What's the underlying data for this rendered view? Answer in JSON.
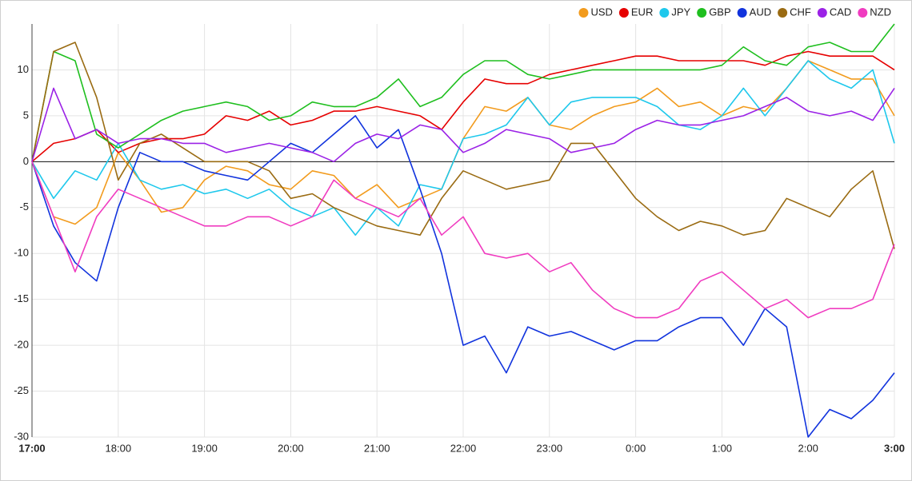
{
  "chart_data": {
    "type": "line",
    "categories": [
      "17:00",
      null,
      null,
      null,
      "18:00",
      null,
      null,
      null,
      "19:00",
      null,
      null,
      null,
      "20:00",
      null,
      null,
      null,
      "21:00",
      null,
      null,
      null,
      "22:00",
      null,
      null,
      null,
      "23:00",
      null,
      null,
      null,
      "0:00",
      null,
      null,
      null,
      "1:00",
      null,
      null,
      null,
      "2:00",
      null,
      null,
      null,
      "3:00"
    ],
    "ylim": [
      -30,
      15
    ],
    "yticks": [
      -30,
      -25,
      -20,
      -15,
      -10,
      -5,
      0,
      5,
      10
    ],
    "grid": true,
    "legend": "top-right",
    "series": [
      {
        "name": "USD",
        "color": "#f29b1d",
        "values": [
          0,
          -6,
          -6.8,
          -5,
          1,
          -2,
          -5.5,
          -5,
          -2,
          -0.5,
          -1,
          -2.5,
          -3,
          -1,
          -1.5,
          -4,
          -2.5,
          -5,
          -4,
          -3,
          2.5,
          6,
          5.5,
          7,
          4,
          3.5,
          5,
          6,
          6.5,
          8,
          6,
          6.5,
          5,
          6,
          5.5,
          8,
          11,
          10,
          9,
          9,
          5
        ]
      },
      {
        "name": "EUR",
        "color": "#e60000",
        "values": [
          0,
          2,
          2.5,
          3.5,
          1,
          2,
          2.5,
          2.5,
          3,
          5,
          4.5,
          5.5,
          4,
          4.5,
          5.5,
          5.5,
          6,
          5.5,
          5,
          3.5,
          6.5,
          9,
          8.5,
          8.5,
          9.5,
          10,
          10.5,
          11,
          11.5,
          11.5,
          11,
          11,
          11,
          11,
          10.5,
          11.5,
          12,
          11.5,
          11.5,
          11.5,
          10
        ]
      },
      {
        "name": "JPY",
        "color": "#1ec8ec",
        "values": [
          0,
          -4,
          -1,
          -2,
          2,
          -2,
          -3,
          -2.5,
          -3.5,
          -3,
          -4,
          -3,
          -5,
          -6,
          -5,
          -8,
          -5,
          -7,
          -2.5,
          -3,
          2.5,
          3,
          4,
          7,
          4,
          6.5,
          7,
          7,
          7,
          6,
          4,
          3.5,
          5,
          8,
          5,
          8,
          11,
          9,
          8,
          10,
          2
        ]
      },
      {
        "name": "GBP",
        "color": "#1fbf1f",
        "values": [
          0,
          12,
          11,
          3,
          1.5,
          3,
          4.5,
          5.5,
          6,
          6.5,
          6,
          4.5,
          5,
          6.5,
          6,
          6,
          7,
          9,
          6,
          7,
          9.5,
          11,
          11,
          9.5,
          9,
          9.5,
          10,
          10,
          10,
          10,
          10,
          10,
          10.5,
          12.5,
          11,
          10.5,
          12.5,
          13,
          12,
          12,
          15
        ]
      },
      {
        "name": "AUD",
        "color": "#1133dd",
        "values": [
          0,
          -7,
          -11,
          -13,
          -5,
          1,
          0,
          0,
          -1,
          -1.5,
          -2,
          0,
          2,
          1,
          3,
          5,
          1.5,
          3.5,
          -3,
          -10,
          -20,
          -19,
          -23,
          -18,
          -19,
          -18.5,
          -19.5,
          -20.5,
          -19.5,
          -19.5,
          -18,
          -17,
          -17,
          -20,
          -16,
          -18,
          -30,
          -27,
          -28,
          -26,
          -23
        ]
      },
      {
        "name": "CHF",
        "color": "#9a6b12",
        "values": [
          0,
          12,
          13,
          7,
          -2,
          2,
          3,
          1.5,
          0,
          0,
          0,
          -1,
          -4,
          -3.5,
          -5,
          -6,
          -7,
          -7.5,
          -8,
          -4,
          -1,
          -2,
          -3,
          -2.5,
          -2,
          2,
          2,
          -1,
          -4,
          -6,
          -7.5,
          -6.5,
          -7,
          -8,
          -7.5,
          -4,
          -5,
          -6,
          -3,
          -1,
          -9.5
        ]
      },
      {
        "name": "CAD",
        "color": "#9b22e6",
        "values": [
          0,
          8,
          2.5,
          3.5,
          2,
          2.5,
          2.5,
          2,
          2,
          1,
          1.5,
          2,
          1.5,
          1,
          0,
          2,
          3,
          2.5,
          4,
          3.5,
          1,
          2,
          3.5,
          3,
          2.5,
          1,
          1.5,
          2,
          3.5,
          4.5,
          4,
          4,
          4.5,
          5,
          6,
          7,
          5.5,
          5,
          5.5,
          4.5,
          8
        ]
      },
      {
        "name": "NZD",
        "color": "#f03cc0",
        "values": [
          0,
          -6,
          -12,
          -6,
          -3,
          -4,
          -5,
          -6,
          -7,
          -7,
          -6,
          -6,
          -7,
          -6,
          -2,
          -4,
          -5,
          -6,
          -4,
          -8,
          -6,
          -10,
          -10.5,
          -10,
          -12,
          -11,
          -14,
          -16,
          -17,
          -17,
          -16,
          -13,
          -12,
          -14,
          -16,
          -15,
          -17,
          -16,
          -16,
          -15,
          -9
        ]
      }
    ]
  }
}
